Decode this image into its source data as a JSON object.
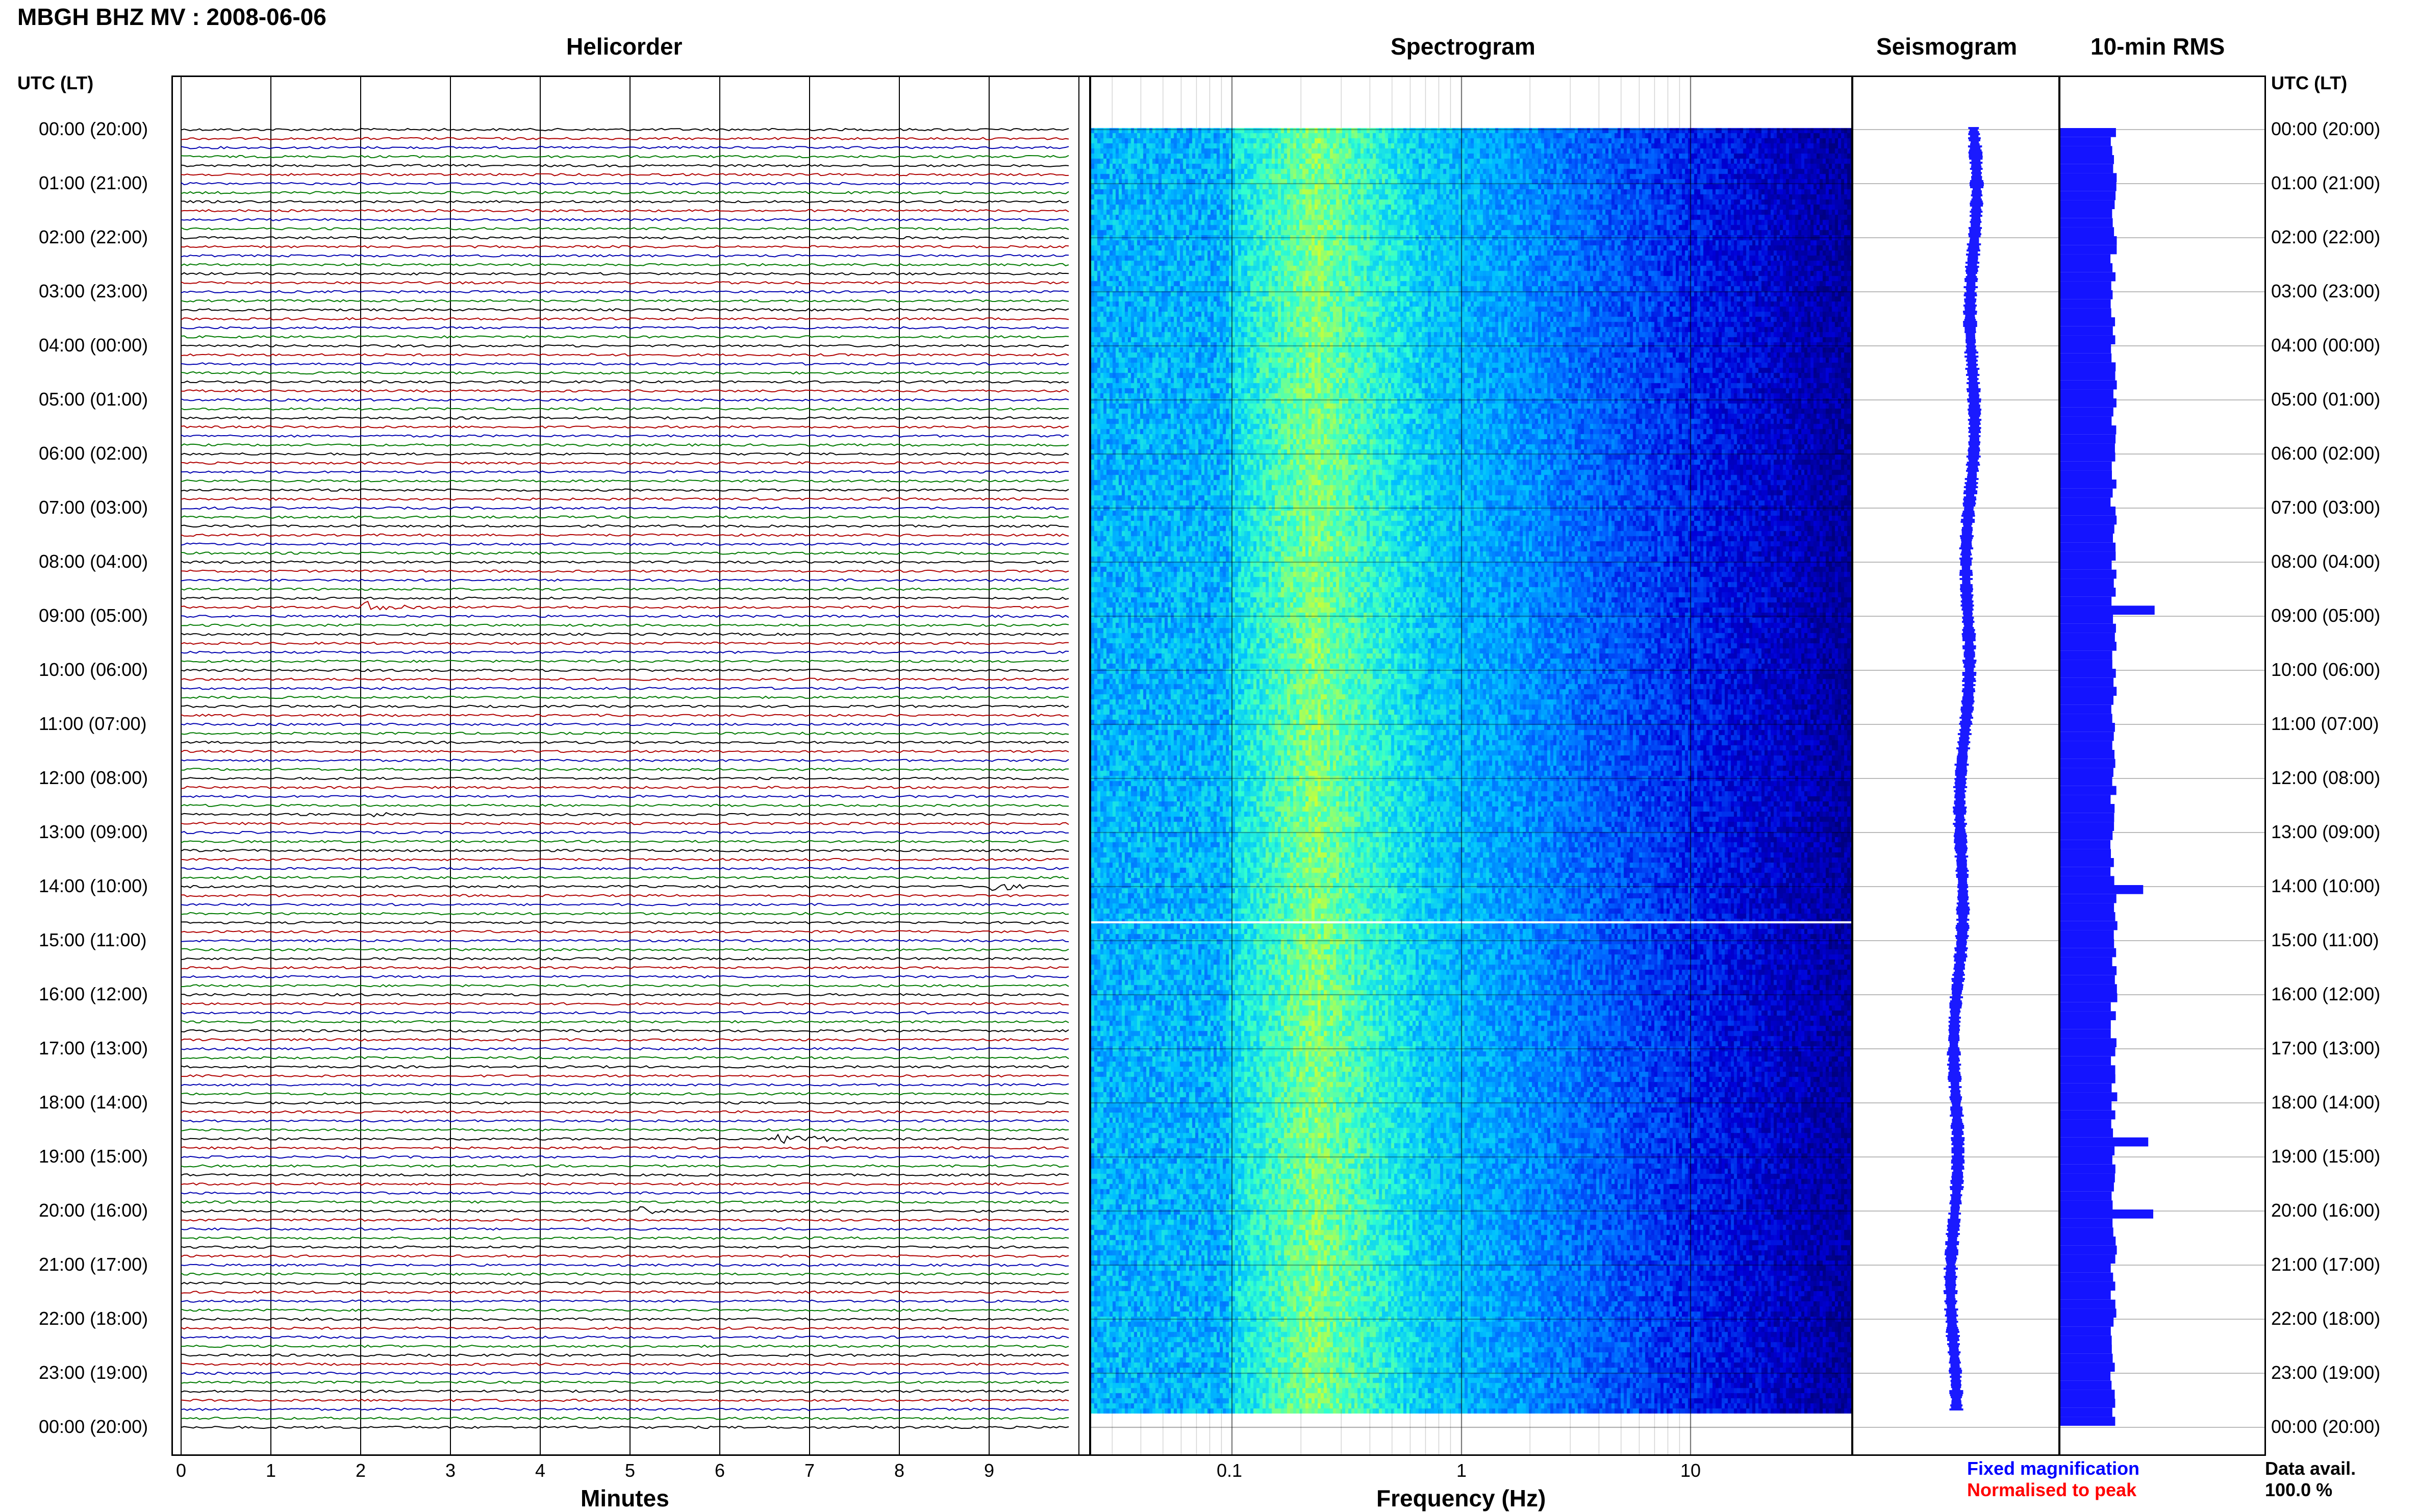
{
  "title": "MBGH BHZ MV : 2008-06-06",
  "panels": {
    "helicorder": "Helicorder",
    "spectrogram": "Spectrogram",
    "seismogram": "Seismogram",
    "rms": "10-min RMS"
  },
  "axis_labels": {
    "time_left": "UTC (LT)",
    "time_right": "UTC (LT)",
    "minutes": "Minutes",
    "frequency": "Frequency (Hz)"
  },
  "time_rows": [
    "00:00 (20:00)",
    "01:00 (21:00)",
    "02:00 (22:00)",
    "03:00 (23:00)",
    "04:00 (00:00)",
    "05:00 (01:00)",
    "06:00 (02:00)",
    "07:00 (03:00)",
    "08:00 (04:00)",
    "09:00 (05:00)",
    "10:00 (06:00)",
    "11:00 (07:00)",
    "12:00 (08:00)",
    "13:00 (09:00)",
    "14:00 (10:00)",
    "15:00 (11:00)",
    "16:00 (12:00)",
    "17:00 (13:00)",
    "18:00 (14:00)",
    "19:00 (15:00)",
    "20:00 (16:00)",
    "21:00 (17:00)",
    "22:00 (18:00)",
    "23:00 (19:00)",
    "00:00 (20:00)"
  ],
  "minute_ticks": [
    "0",
    "1",
    "2",
    "3",
    "4",
    "5",
    "6",
    "7",
    "8",
    "9"
  ],
  "freq_ticks": [
    "0.1",
    "1",
    "10"
  ],
  "legend": {
    "fixed": "Fixed magnification",
    "normalised": "Normalised to peak",
    "fixed_color": "#0000ff",
    "normalised_color": "#ff0000"
  },
  "data_avail": {
    "label": "Data avail.",
    "value": "100.0 %"
  },
  "trace_colors": [
    "#000000",
    "#b00000",
    "#0000b0",
    "#007a00"
  ],
  "spectrogram_colormap": [
    "#00007f",
    "#0000d8",
    "#0060ff",
    "#00c0ff",
    "#30ffd0",
    "#a0ff60",
    "#ffff00"
  ],
  "events": [
    {
      "hour": 8.8,
      "minute_start": 2.0,
      "minute_end": 3.8,
      "amp": "large"
    },
    {
      "hour": 12.65,
      "minute_start": 2.0,
      "minute_end": 4.2,
      "amp": "small"
    },
    {
      "hour": 13.95,
      "minute_start": 9.0,
      "minute_end": 9.9,
      "amp": "large"
    },
    {
      "hour": 18.65,
      "minute_start": 6.6,
      "minute_end": 8.5,
      "amp": "large"
    },
    {
      "hour": 19.95,
      "minute_start": 5.1,
      "minute_end": 5.8,
      "amp": "large"
    }
  ]
}
